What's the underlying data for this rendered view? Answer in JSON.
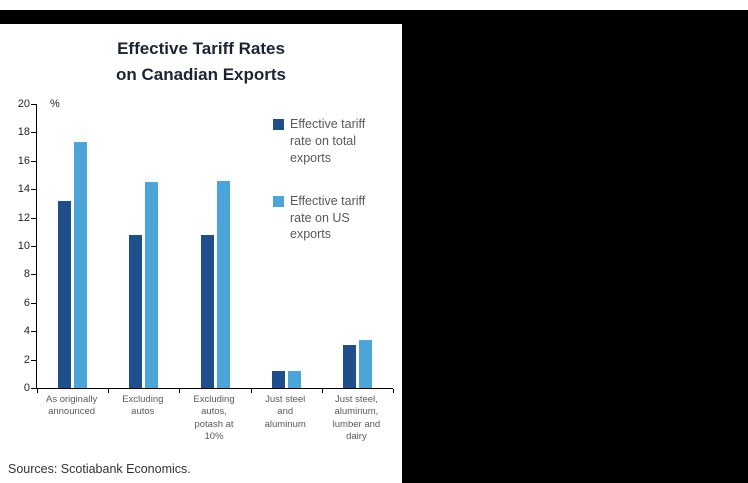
{
  "page": {
    "sources": "Sources: Scotiabank Economics."
  },
  "chart_data": {
    "type": "bar",
    "title": "Effective Tariff Rates on Canadian Exports",
    "title_lines": [
      "Effective Tariff Rates",
      "on Canadian Exports"
    ],
    "percent_label": "%",
    "categories": [
      [
        "As originally",
        "announced"
      ],
      [
        "Excluding",
        "autos"
      ],
      [
        "Excluding",
        "autos,",
        "potash at",
        "10%"
      ],
      [
        "Just steel",
        "and",
        "aluminum"
      ],
      [
        "Just steel,",
        "aluminum,",
        "lumber and",
        "dairy"
      ]
    ],
    "series": [
      {
        "name": "Effective tariff rate on total exports",
        "color": "#1f4e8c",
        "values": [
          13.2,
          10.8,
          10.8,
          1.2,
          3.0
        ]
      },
      {
        "name": "Effective tariff rate on US exports",
        "color": "#4ba5d9",
        "values": [
          17.3,
          14.5,
          14.6,
          1.2,
          3.4
        ]
      }
    ],
    "ylim": [
      0,
      20
    ],
    "ytick_step": 2,
    "legend_position": "top-right",
    "grid": false
  }
}
